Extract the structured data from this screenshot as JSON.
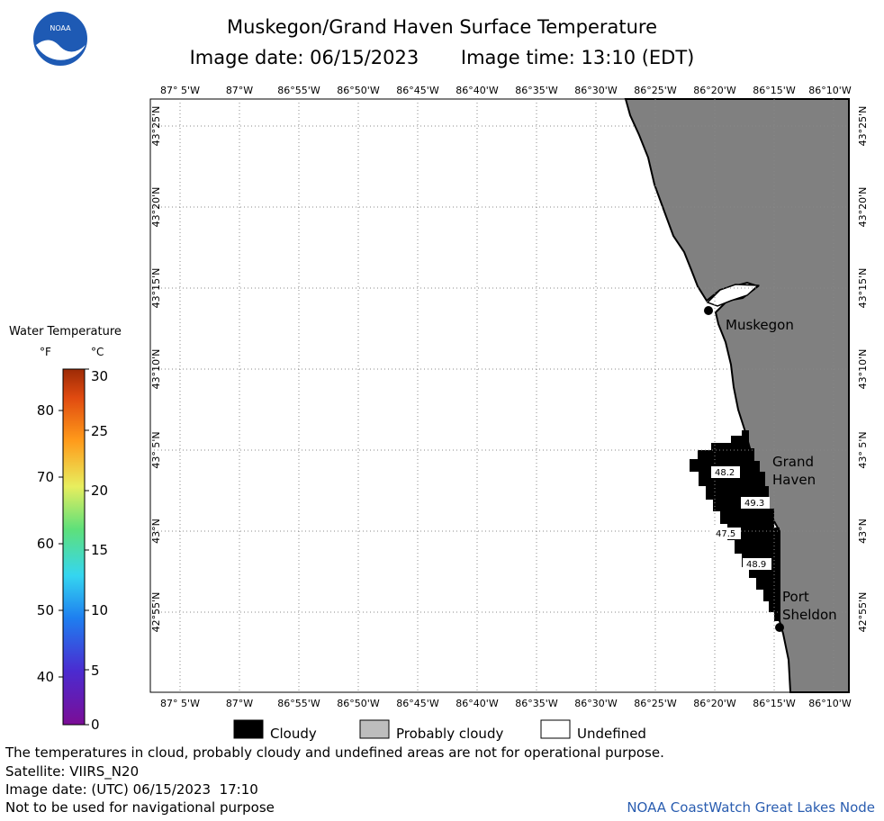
{
  "header": {
    "title": "Muskegon/Grand Haven Surface Temperature",
    "image_date": "Image date: 06/15/2023",
    "image_time": "Image time: 13:10 (EDT)"
  },
  "logo": {
    "text": "NOAA",
    "icon": "noaa-logo-icon"
  },
  "map": {
    "lon_labels": [
      "87° 5'W",
      "87°W",
      "86°55'W",
      "86°50'W",
      "86°45'W",
      "86°40'W",
      "86°35'W",
      "86°30'W",
      "86°25'W",
      "86°20'W",
      "86°15'W",
      "86°10'W"
    ],
    "lat_labels": [
      "43°25'N",
      "43°20'N",
      "43°15'N",
      "43°10'N",
      "43° 5'N",
      "43°N",
      "42°55'N"
    ],
    "places": [
      {
        "name": "Muskegon"
      },
      {
        "name": "Grand Haven"
      },
      {
        "name": "Port Sheldon"
      }
    ],
    "temperature_readings": [
      "48.2",
      "49.3",
      "47.5",
      "48.9"
    ],
    "colors": {
      "land": "#808080",
      "water_undefined": "#ffffff",
      "cloudy": "#000000"
    }
  },
  "color_scale": {
    "title": "Water Temperature",
    "unit_f": "°F",
    "unit_c": "°C",
    "f_ticks": [
      "80",
      "70",
      "60",
      "50",
      "40"
    ],
    "c_ticks": [
      "30",
      "25",
      "20",
      "15",
      "10",
      "5",
      "0"
    ]
  },
  "legend": {
    "cloudy": "Cloudy",
    "probably_cloudy": "Probably cloudy",
    "undefined": "Undefined"
  },
  "footer": {
    "disclaimer": "The temperatures in cloud, probably cloudy and undefined areas are not for operational purpose.",
    "satellite": "Satellite: VIIRS_N20",
    "utc_date": "Image date: (UTC) 06/15/2023  17:10",
    "nav_warning": "Not to be used for navigational purpose",
    "credit": "NOAA CoastWatch Great Lakes Node"
  }
}
